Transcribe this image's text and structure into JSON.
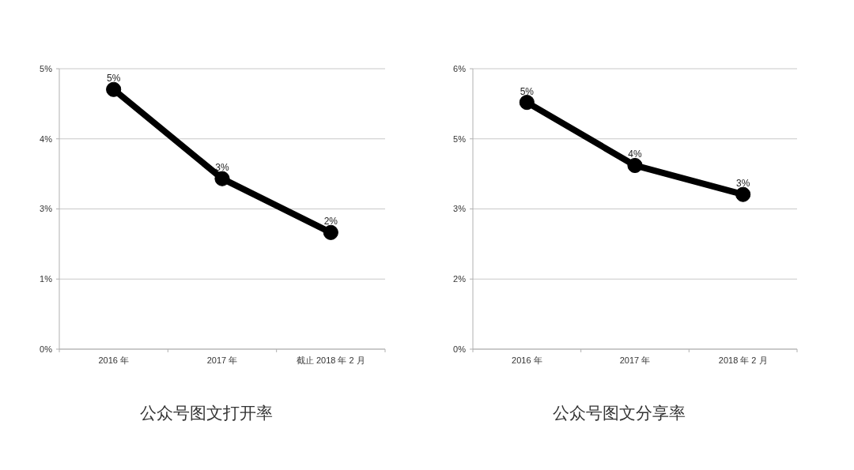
{
  "chart_data": [
    {
      "type": "line",
      "title": "公众号图文打开率",
      "categories": [
        "2016 年",
        "2017 年",
        "截止 2018 年 2 月"
      ],
      "series": [
        {
          "color": "#000000",
          "values": [
            4.63,
            3.04,
            2.08
          ],
          "value_labels": [
            "5%",
            "3%",
            "2%"
          ]
        }
      ],
      "ylim": [
        0,
        5
      ],
      "yticks": [
        {
          "value": 0,
          "label": "0%"
        },
        {
          "value": 1.25,
          "label": "1%"
        },
        {
          "value": 2.5,
          "label": "3%"
        },
        {
          "value": 3.75,
          "label": "4%"
        },
        {
          "value": 5,
          "label": "5%"
        }
      ],
      "grid": "y",
      "marker": "circle"
    },
    {
      "type": "line",
      "title": "公众号图文分享率",
      "categories": [
        "2016 年",
        "2017 年",
        "2018 年 2 月"
      ],
      "series": [
        {
          "color": "#000000",
          "values": [
            5.28,
            3.93,
            3.31
          ],
          "value_labels": [
            "5%",
            "4%",
            "3%"
          ]
        }
      ],
      "ylim": [
        0,
        6
      ],
      "yticks": [
        {
          "value": 0,
          "label": "0%"
        },
        {
          "value": 1.5,
          "label": "2%"
        },
        {
          "value": 3,
          "label": "3%"
        },
        {
          "value": 4.5,
          "label": "5%"
        },
        {
          "value": 6,
          "label": "6%"
        }
      ],
      "grid": "y",
      "marker": "circle"
    }
  ]
}
